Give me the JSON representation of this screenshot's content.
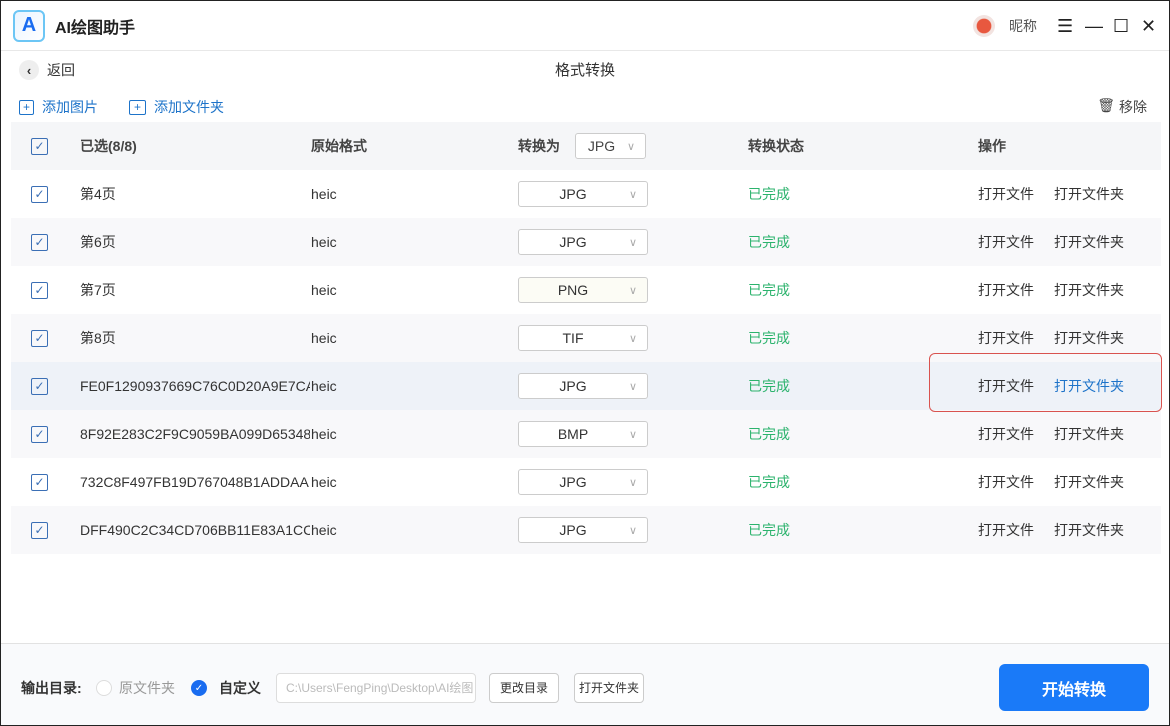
{
  "app": {
    "title": "AI绘图助手",
    "logo_text": "A",
    "nickname": "昵称"
  },
  "nav": {
    "back": "返回",
    "page_title": "格式转换"
  },
  "toolbar": {
    "add_image": "添加图片",
    "add_folder": "添加文件夹",
    "remove": "移除"
  },
  "table": {
    "headers": {
      "selected": "已选(8/8)",
      "orig_format": "原始格式",
      "convert_to": "转换为",
      "convert_to_value": "JPG",
      "status": "转换状态",
      "actions": "操作"
    },
    "rows": [
      {
        "name": "第4页",
        "format": "heic",
        "target": "JPG",
        "status": "已完成",
        "open_file": "打开文件",
        "open_folder": "打开文件夹"
      },
      {
        "name": "第6页",
        "format": "heic",
        "target": "JPG",
        "status": "已完成",
        "open_file": "打开文件",
        "open_folder": "打开文件夹"
      },
      {
        "name": "第7页",
        "format": "heic",
        "target": "PNG",
        "status": "已完成",
        "open_file": "打开文件",
        "open_folder": "打开文件夹"
      },
      {
        "name": "第8页",
        "format": "heic",
        "target": "TIF",
        "status": "已完成",
        "open_file": "打开文件",
        "open_folder": "打开文件夹"
      },
      {
        "name": "FE0F1290937669C76C0D20A9E7CA...",
        "format": "heic",
        "target": "JPG",
        "status": "已完成",
        "open_file": "打开文件",
        "open_folder": "打开文件夹"
      },
      {
        "name": "8F92E283C2F9C9059BA099D65348...",
        "format": "heic",
        "target": "BMP",
        "status": "已完成",
        "open_file": "打开文件",
        "open_folder": "打开文件夹"
      },
      {
        "name": "732C8F497FB19D767048B1ADDAA...",
        "format": "heic",
        "target": "JPG",
        "status": "已完成",
        "open_file": "打开文件",
        "open_folder": "打开文件夹"
      },
      {
        "name": "DFF490C2C34CD706BB11E83A1CC...",
        "format": "heic",
        "target": "JPG",
        "status": "已完成",
        "open_file": "打开文件",
        "open_folder": "打开文件夹"
      }
    ]
  },
  "footer": {
    "output_label": "输出目录:",
    "opt_original": "原文件夹",
    "opt_custom": "自定义",
    "path": "C:\\Users\\FengPing\\Desktop\\AI绘图",
    "change_dir": "更改目录",
    "open_folder": "打开文件夹",
    "start": "开始转换"
  },
  "colors": {
    "accent": "#1a7af8",
    "success": "#2cb36d",
    "highlight_border": "#d9534f"
  }
}
